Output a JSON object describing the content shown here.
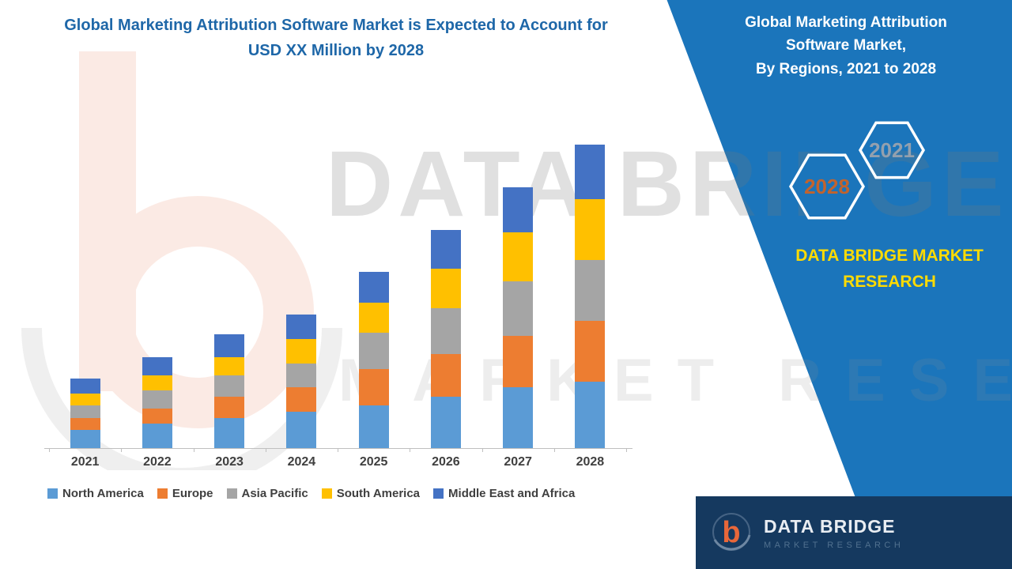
{
  "main_title": {
    "line1": "Global Marketing Attribution Software Market is Expected to Account for",
    "line2": "USD XX Million by 2028"
  },
  "side_panel": {
    "background_color": "#1B75BB",
    "title_lines": [
      "Global Marketing Attribution",
      "Software Market,",
      "By Regions, 2021 to 2028"
    ],
    "hexagons": [
      {
        "label": "2028",
        "text_color": "#C2632D"
      },
      {
        "label": "2021",
        "text_color": "#93A0AE"
      }
    ],
    "brand_lines": [
      "DATA BRIDGE MARKET",
      "RESEARCH"
    ],
    "brand_color": "#FFDB00"
  },
  "watermark": {
    "line1": "DATA BRIDGE",
    "line2": "MARKET RESEARCH"
  },
  "footer": {
    "background_color": "#15395F",
    "logo_letter": "b",
    "brand_name": "DATA BRIDGE",
    "brand_subtitle": "MARKET RESEARCH"
  },
  "chart_data": {
    "type": "bar",
    "stacked": true,
    "title": "Global Marketing Attribution Software Market is Expected to Account for USD XX Million by 2028",
    "xlabel": "",
    "ylabel": "",
    "ylim": [
      0,
      105
    ],
    "grid": false,
    "legend_position": "bottom",
    "categories": [
      "2021",
      "2022",
      "2023",
      "2024",
      "2025",
      "2026",
      "2027",
      "2028"
    ],
    "series": [
      {
        "name": "North America",
        "color": "#5B9BD5",
        "values": [
          6,
          8,
          10,
          12,
          14,
          17,
          20,
          22
        ]
      },
      {
        "name": "Europe",
        "color": "#ED7D31",
        "values": [
          4,
          5,
          7,
          8,
          12,
          14,
          17,
          20
        ]
      },
      {
        "name": "Asia Pacific",
        "color": "#A5A5A5",
        "values": [
          4,
          6,
          7,
          8,
          12,
          15,
          18,
          20
        ]
      },
      {
        "name": "South America",
        "color": "#FFC000",
        "values": [
          4,
          5,
          6,
          8,
          10,
          13,
          16,
          20
        ]
      },
      {
        "name": "Middle East and Africa",
        "color": "#4472C4",
        "values": [
          5,
          6,
          7.5,
          8,
          10,
          13,
          15,
          18
        ]
      }
    ]
  }
}
